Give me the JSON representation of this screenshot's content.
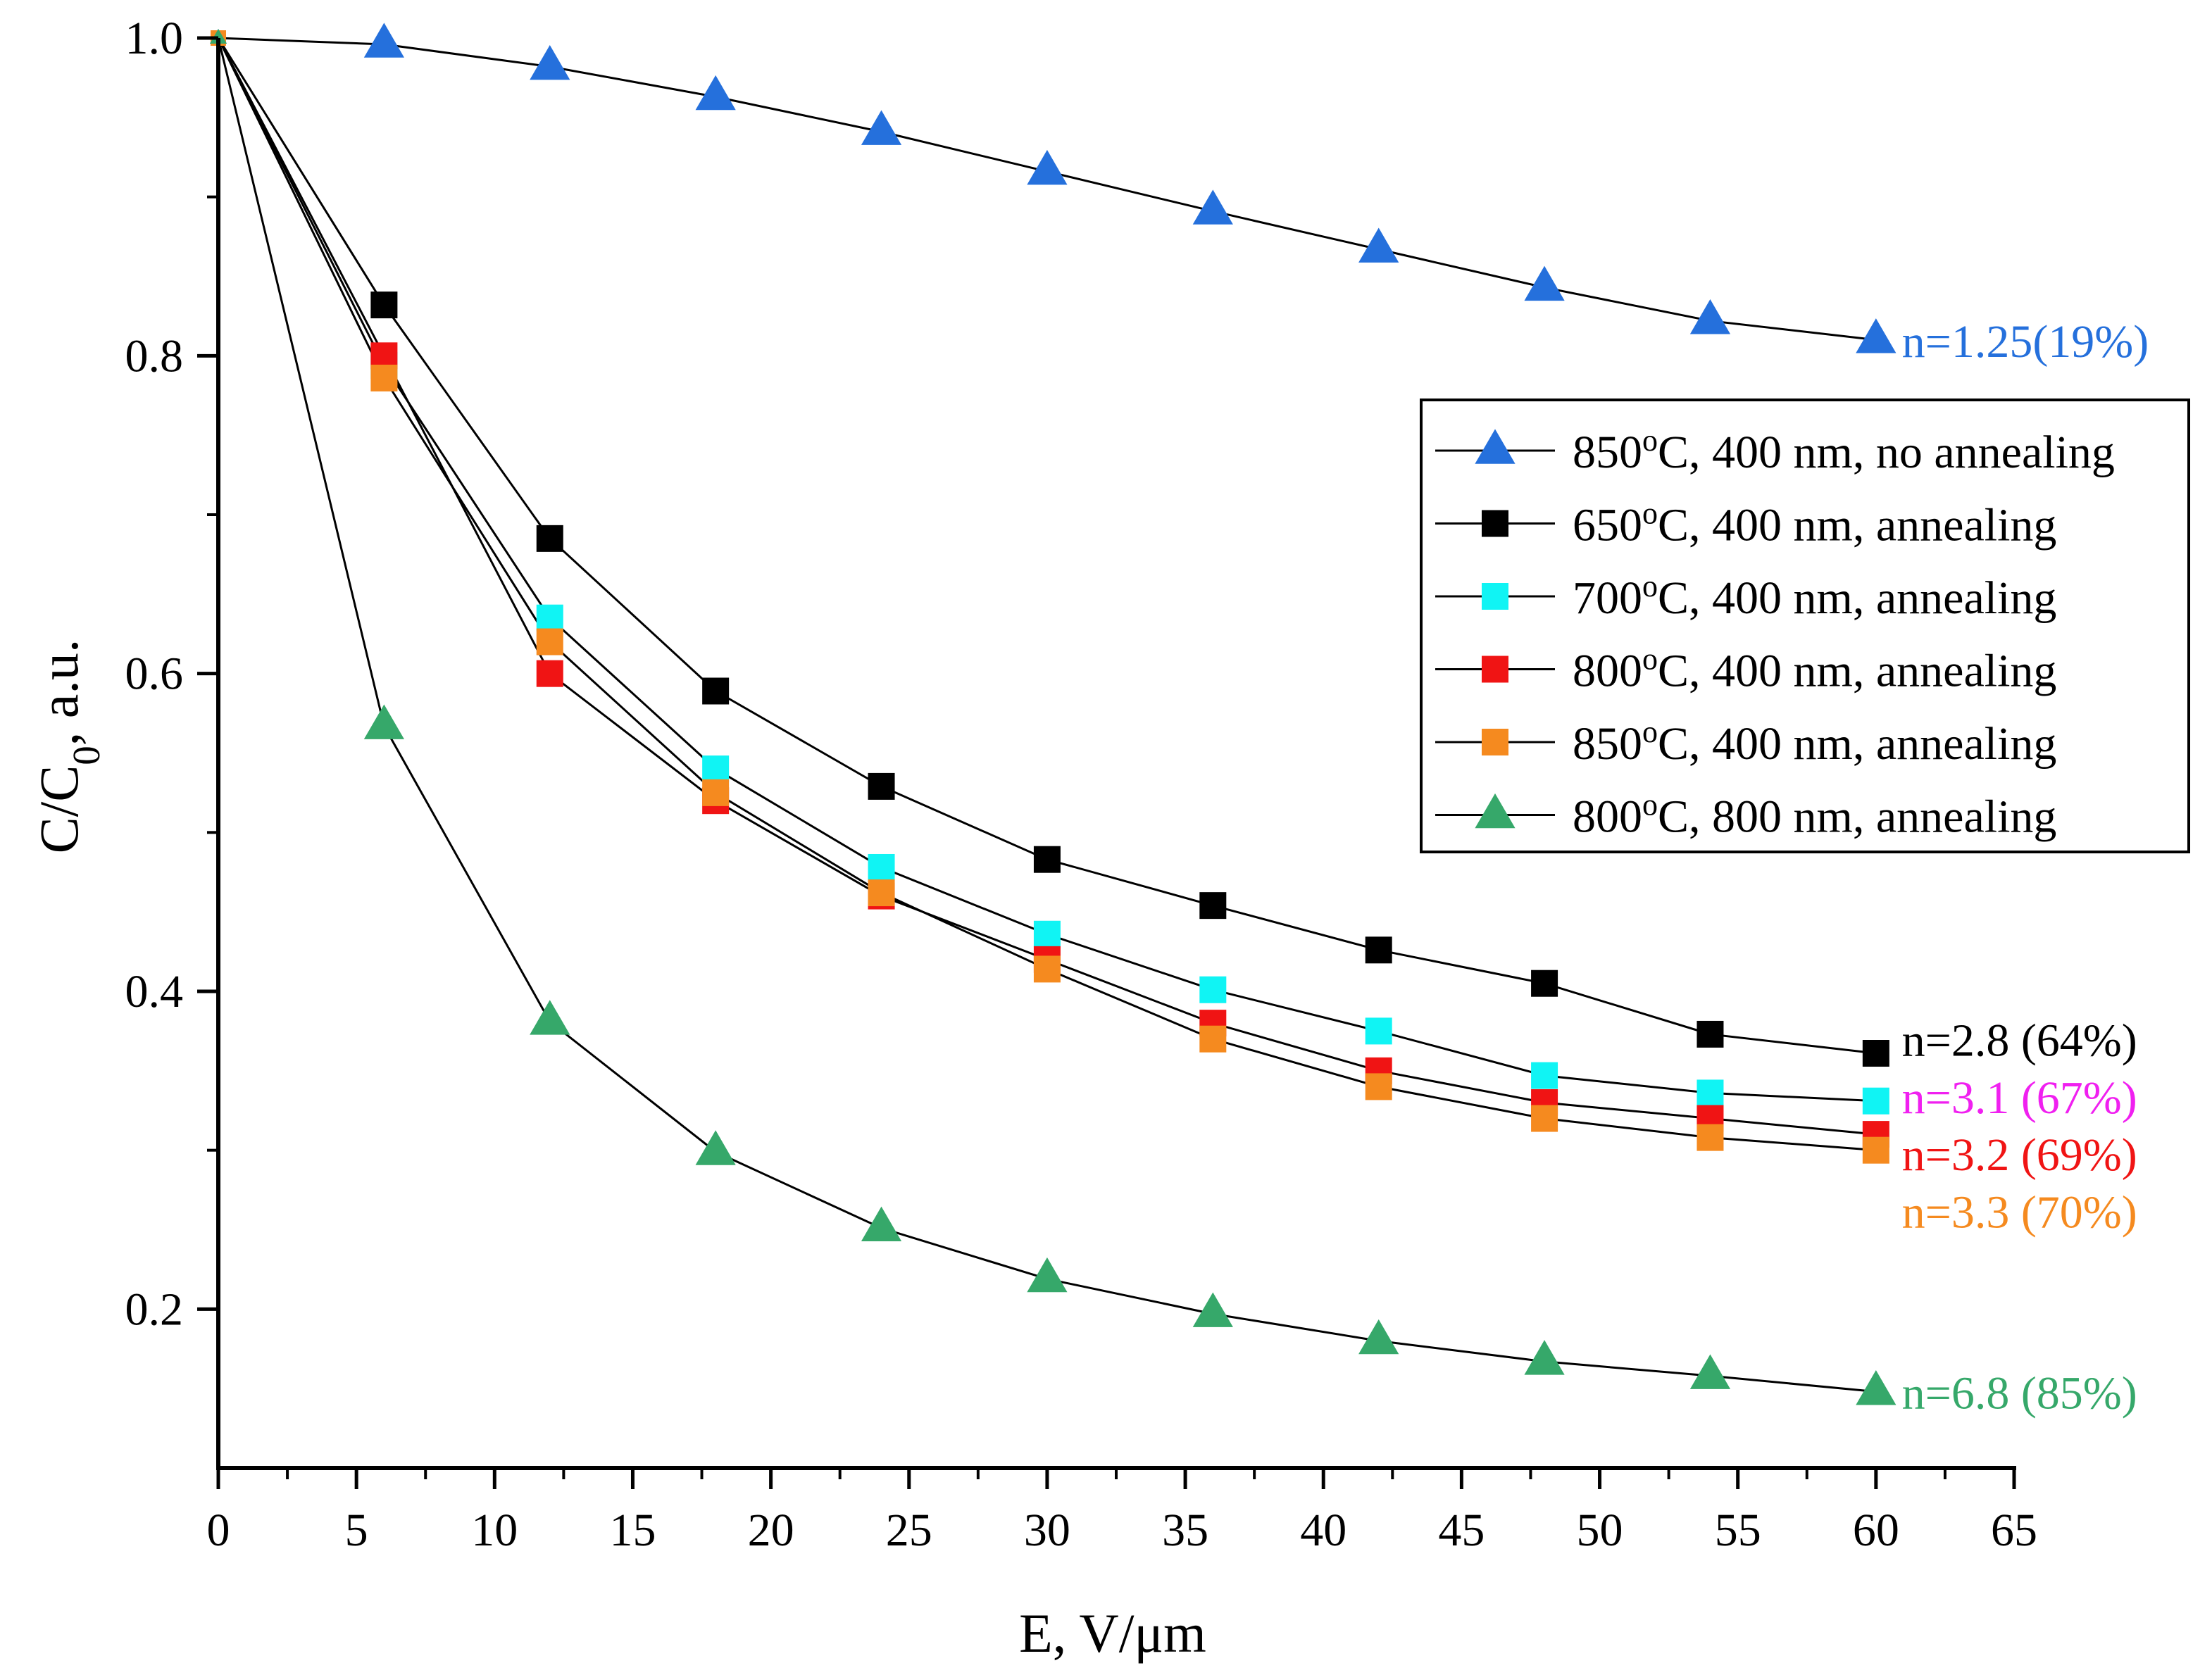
{
  "chart_data": {
    "type": "line",
    "title": "",
    "xlabel": "E, V/μm",
    "ylabel_main": "C/C",
    "ylabel_sub": "0",
    "ylabel_tail": ", a.u.",
    "xlim": [
      0,
      65
    ],
    "ylim": [
      0.1,
      1.0
    ],
    "grid": false,
    "x_ticks": [
      0,
      5,
      10,
      15,
      20,
      25,
      30,
      35,
      40,
      45,
      50,
      55,
      60,
      65
    ],
    "x_tick_labels": [
      "0",
      "5",
      "10",
      "15",
      "20",
      "25",
      "30",
      "35",
      "40",
      "45",
      "50",
      "55",
      "60",
      "65"
    ],
    "y_ticks": [
      0.2,
      0.4,
      0.6,
      0.8,
      1.0
    ],
    "y_tick_labels": [
      "0.2",
      "0.4",
      "0.6",
      "0.8",
      "1.0"
    ],
    "legend_position": "right-middle",
    "x": [
      0,
      6,
      12,
      18,
      24,
      30,
      36,
      42,
      48,
      54,
      60
    ],
    "series": [
      {
        "name": "850ºC, 400 nm, no annealing",
        "temp": "850",
        "rest": "C, 400 nm, no annealing",
        "marker": "triangle",
        "color": "#2570dc",
        "values": [
          1.0,
          0.996,
          0.982,
          0.963,
          0.941,
          0.916,
          0.891,
          0.867,
          0.843,
          0.822,
          0.81
        ]
      },
      {
        "name": "650ºC, 400 nm, annealing",
        "temp": "650",
        "rest": "C, 400 nm, annealing",
        "marker": "square",
        "color": "#000000",
        "values": [
          1.0,
          0.832,
          0.685,
          0.589,
          0.529,
          0.483,
          0.454,
          0.426,
          0.405,
          0.373,
          0.361
        ]
      },
      {
        "name": "700ºC, 400 nm, annealing",
        "temp": "700",
        "rest": "C, 400 nm, annealing",
        "marker": "square",
        "color": "#10f4f4",
        "values": [
          1.0,
          0.794,
          0.635,
          0.54,
          0.478,
          0.436,
          0.401,
          0.375,
          0.347,
          0.336,
          0.331
        ]
      },
      {
        "name": "800ºC, 400 nm, annealing",
        "temp": "800",
        "rest": "C, 400 nm, annealing",
        "marker": "square",
        "color": "#f01414",
        "values": [
          1.0,
          0.8,
          0.6,
          0.52,
          0.46,
          0.42,
          0.38,
          0.35,
          0.33,
          0.32,
          0.31
        ]
      },
      {
        "name": "850ºC, 400 nm, annealing",
        "temp": "850",
        "rest": "C, 400 nm, annealing",
        "marker": "square",
        "color": "#f58a1f",
        "values": [
          1.0,
          0.786,
          0.62,
          0.525,
          0.462,
          0.414,
          0.37,
          0.34,
          0.32,
          0.308,
          0.3
        ]
      },
      {
        "name": "800ºC, 800 nm, annealing",
        "temp": "800",
        "rest": "C, 800 nm, annealing",
        "marker": "triangle",
        "color": "#36a86a",
        "values": [
          1.0,
          0.567,
          0.381,
          0.299,
          0.251,
          0.219,
          0.197,
          0.18,
          0.167,
          0.158,
          0.148
        ]
      }
    ],
    "annotations": [
      {
        "text": "n=1.25(19%)",
        "color": "#2570dc",
        "x": 60.3,
        "y": 0.81
      },
      {
        "text": "n=2.8 (64%)",
        "color": "#000000",
        "x": 60.3,
        "y": 0.37
      },
      {
        "text": "n=3.1 (67%)",
        "color": "#f020f0",
        "x": 60.3,
        "y": 0.334
      },
      {
        "text": "n=3.2 (69%)",
        "color": "#f01414",
        "x": 60.3,
        "y": 0.298
      },
      {
        "text": "n=3.3 (70%)",
        "color": "#f58a1f",
        "x": 60.3,
        "y": 0.262
      },
      {
        "text": "n=6.8 (85%)",
        "color": "#36a86a",
        "x": 60.3,
        "y": 0.148
      }
    ]
  }
}
